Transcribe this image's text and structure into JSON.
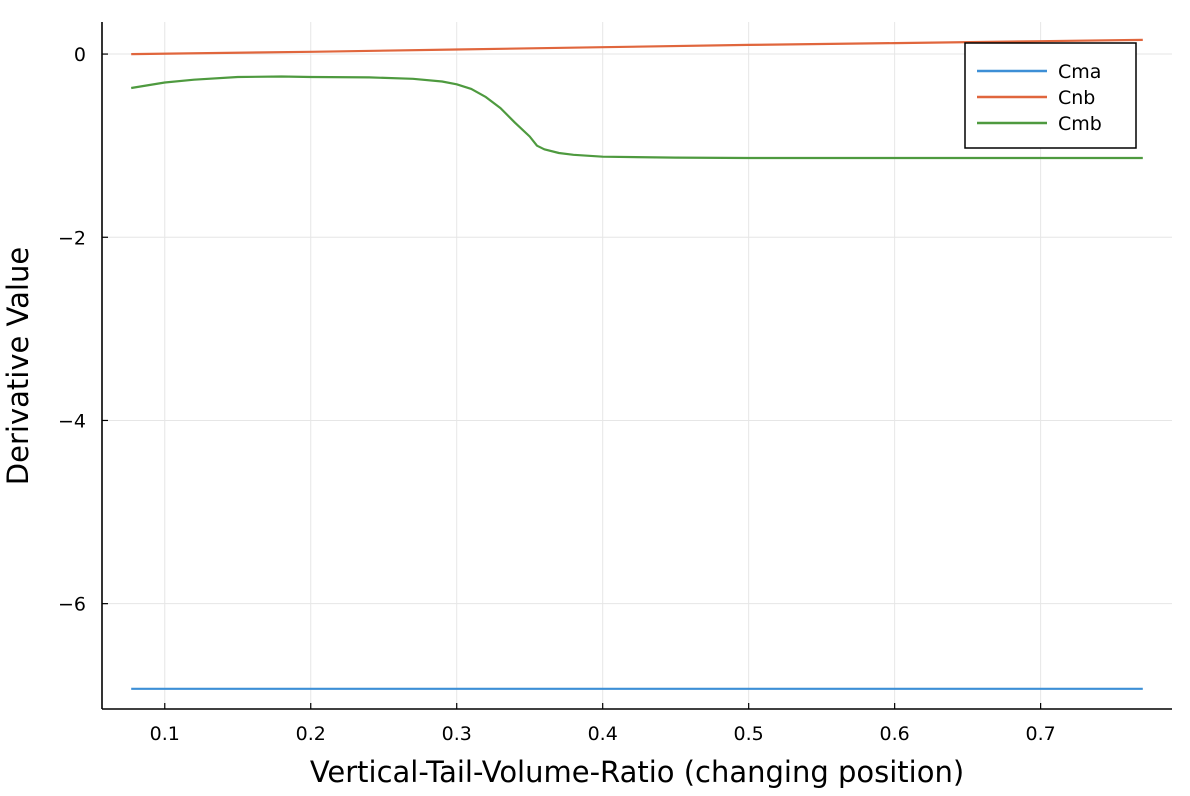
{
  "chart_data": {
    "type": "line",
    "title": "",
    "xlabel": "Vertical-Tail-Volume-Ratio (changing position)",
    "ylabel": "Derivative Value",
    "xlim": [
      0.057,
      0.79
    ],
    "ylim": [
      -7.15,
      0.35
    ],
    "xticks": [
      0.1,
      0.2,
      0.3,
      0.4,
      0.5,
      0.6,
      0.7
    ],
    "xtick_labels": [
      "0.1",
      "0.2",
      "0.3",
      "0.4",
      "0.5",
      "0.6",
      "0.7"
    ],
    "yticks": [
      0,
      -2,
      -4,
      -6
    ],
    "ytick_labels": [
      "0",
      "−2",
      "−4",
      "−6"
    ],
    "grid": true,
    "legend_position": "top-right",
    "series": [
      {
        "name": "Cma",
        "color": "#3d8fd6",
        "x": [
          0.077,
          0.77
        ],
        "y": [
          -6.93,
          -6.93
        ]
      },
      {
        "name": "Cnb",
        "color": "#e0663d",
        "x": [
          0.077,
          0.2,
          0.3,
          0.4,
          0.5,
          0.6,
          0.7,
          0.77
        ],
        "y": [
          0.0,
          0.025,
          0.05,
          0.075,
          0.1,
          0.12,
          0.14,
          0.155
        ]
      },
      {
        "name": "Cmb",
        "color": "#4e9a3f",
        "x": [
          0.077,
          0.1,
          0.12,
          0.15,
          0.18,
          0.2,
          0.24,
          0.27,
          0.29,
          0.3,
          0.31,
          0.32,
          0.33,
          0.34,
          0.35,
          0.355,
          0.36,
          0.37,
          0.38,
          0.4,
          0.45,
          0.5,
          0.6,
          0.7,
          0.77
        ],
        "y": [
          -0.37,
          -0.31,
          -0.28,
          -0.25,
          -0.245,
          -0.25,
          -0.255,
          -0.27,
          -0.3,
          -0.33,
          -0.38,
          -0.47,
          -0.59,
          -0.75,
          -0.9,
          -1.0,
          -1.04,
          -1.08,
          -1.1,
          -1.12,
          -1.13,
          -1.135,
          -1.135,
          -1.135,
          -1.135
        ]
      }
    ]
  }
}
